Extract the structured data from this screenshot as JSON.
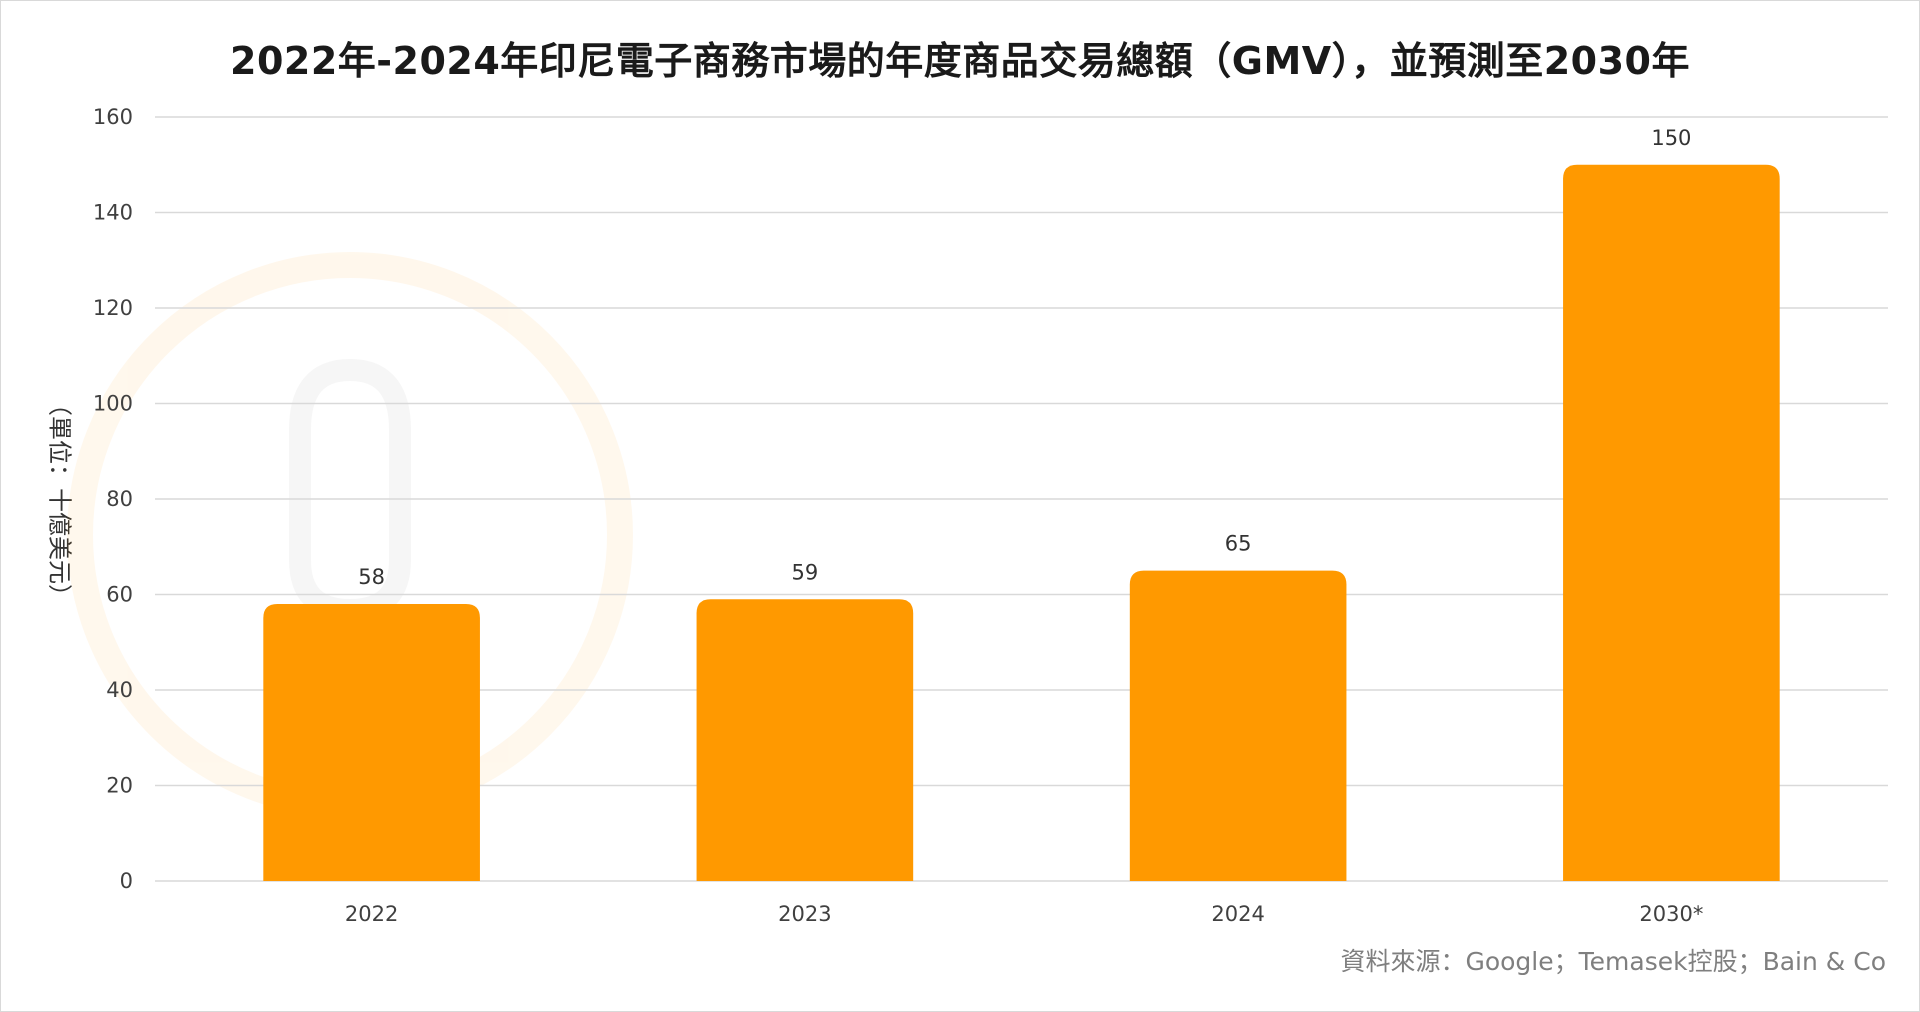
{
  "chart_data": {
    "type": "bar",
    "title": "2022年-2024年印尼電子商務市場的年度商品交易總額（GMV），並預測至2030年",
    "xlabel": "",
    "ylabel": "（單位：十億美元）",
    "categories": [
      "2022",
      "2023",
      "2024",
      "2030*"
    ],
    "values": [
      58,
      59,
      65,
      150
    ],
    "data_labels": [
      "58",
      "59",
      "65",
      "150"
    ],
    "ylim": [
      0,
      160
    ],
    "yticks": [
      0,
      20,
      40,
      60,
      80,
      100,
      120,
      140,
      160
    ],
    "ytick_labels": [
      "0",
      "20",
      "40",
      "60",
      "80",
      "100",
      "120",
      "140",
      "160"
    ],
    "grid": true,
    "legend": "none",
    "bar_color": "#FF9900",
    "gridline_color": "#d9d9d9"
  },
  "source_note": "資料來源：Google；Temasek控股；Bain & Co"
}
